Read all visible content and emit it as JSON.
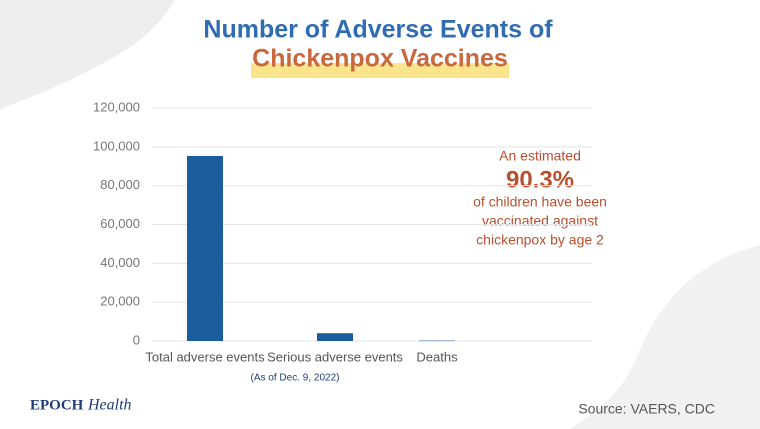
{
  "chart_data": {
    "type": "bar",
    "title": [
      "Number of Adverse Events of",
      "Chickenpox Vaccines"
    ],
    "categories": [
      "Total adverse events",
      "Serious adverse events",
      "Deaths"
    ],
    "values": [
      95300,
      4000,
      200
    ],
    "color": "#1b5c9c",
    "ylim": [
      0,
      120000
    ],
    "yticks": [
      0,
      {
        "value": 20000,
        "label": "20,000"
      },
      {
        "value": 40000,
        "label": "40,000"
      },
      {
        "value": 60000,
        "label": "60,000"
      },
      {
        "value": 80000,
        "label": "80,000"
      },
      {
        "value": 100000,
        "label": "100,000"
      },
      {
        "value": 120000,
        "label": "120,000"
      }
    ],
    "grid": true,
    "note": "(As of Dec. 9, 2022)",
    "annotation": [
      "An estimated",
      "90.3%",
      "of children have been",
      "vaccinated against",
      "chickenpox by age 2"
    ],
    "source": "Source: VAERS, CDC",
    "brand": [
      "EPOCH",
      "Health"
    ]
  }
}
